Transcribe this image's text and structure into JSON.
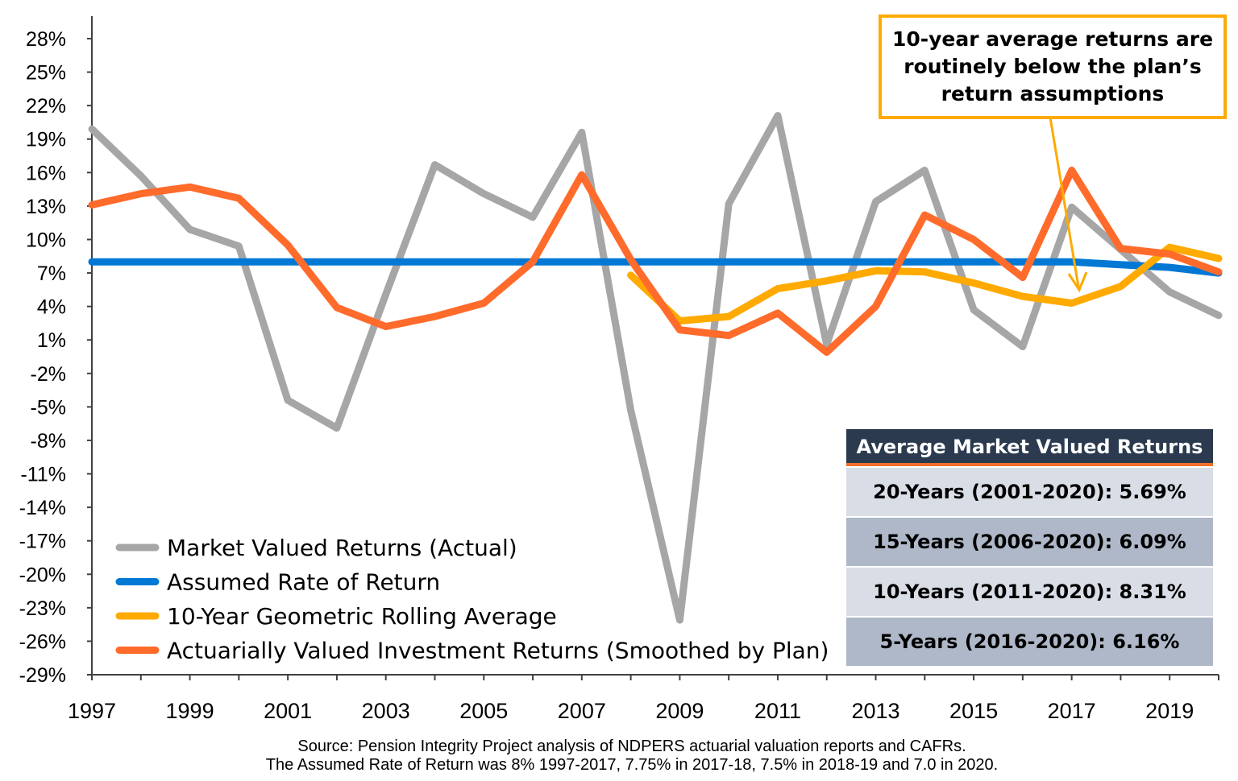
{
  "chart_data": {
    "type": "line",
    "x": [
      1997,
      1998,
      1999,
      2000,
      2001,
      2002,
      2003,
      2004,
      2005,
      2006,
      2007,
      2008,
      2009,
      2010,
      2011,
      2012,
      2013,
      2014,
      2015,
      2016,
      2017,
      2018,
      2019,
      2020
    ],
    "x_tick_labels": [
      "1997",
      "1999",
      "2001",
      "2003",
      "2005",
      "2007",
      "2009",
      "2011",
      "2013",
      "2015",
      "2017",
      "2019"
    ],
    "y_tick_labels": [
      "28%",
      "25%",
      "22%",
      "19%",
      "16%",
      "13%",
      "10%",
      "7%",
      "4%",
      "1%",
      "-2%",
      "-5%",
      "-8%",
      "-11%",
      "-14%",
      "-17%",
      "-20%",
      "-23%",
      "-26%",
      "-29%"
    ],
    "ylim": [
      -29,
      28
    ],
    "xlim": [
      1997,
      2020
    ],
    "grid": false,
    "legend_position": "bottom-left",
    "series": [
      {
        "name": "Market Valued Returns (Actual)",
        "color": "#A6A6A6",
        "values": [
          19.9,
          15.7,
          10.9,
          9.4,
          -4.4,
          -6.9,
          5.1,
          16.7,
          14.1,
          12.0,
          19.6,
          -5.3,
          -24.1,
          13.2,
          21.1,
          0.6,
          13.4,
          16.2,
          3.7,
          0.4,
          12.9,
          9.1,
          5.3,
          3.2
        ]
      },
      {
        "name": "Assumed Rate of Return",
        "color": "#0078D4",
        "values": [
          8,
          8,
          8,
          8,
          8,
          8,
          8,
          8,
          8,
          8,
          8,
          8,
          8,
          8,
          8,
          8,
          8,
          8,
          8,
          8,
          8,
          7.75,
          7.5,
          7.0
        ]
      },
      {
        "name": "10-Year Geometric Rolling Average",
        "color": "#FFAA00",
        "values": [
          null,
          null,
          null,
          null,
          null,
          null,
          null,
          null,
          null,
          null,
          null,
          6.8,
          2.7,
          3.1,
          5.6,
          6.3,
          7.2,
          7.1,
          6.1,
          4.9,
          4.3,
          5.8,
          9.3,
          8.3
        ]
      },
      {
        "name": "Actuarially Valued Investment Returns (Smoothed by Plan)",
        "color": "#FF6B2B",
        "values": [
          13.1,
          14.1,
          14.7,
          13.7,
          9.5,
          3.9,
          2.2,
          3.1,
          4.3,
          8.0,
          15.8,
          8.2,
          1.9,
          1.4,
          3.4,
          -0.1,
          4.0,
          12.2,
          10.0,
          6.6,
          16.2,
          9.2,
          8.7,
          7.1
        ]
      }
    ],
    "annotation": {
      "text_lines": [
        "10-year average returns are",
        "routinely below the plan’s",
        "return assumptions"
      ],
      "color": "#FFAA00"
    },
    "table": {
      "title": "Average Market Valued Returns",
      "rows": [
        "20-Years (2001-2020): 5.69%",
        "15-Years (2006-2020): 6.09%",
        "10-Years (2011-2020): 8.31%",
        "5-Years (2016-2020): 6.16%"
      ]
    },
    "source_lines": [
      "Source: Pension Integrity Project analysis of NDPERS actuarial valuation reports and CAFRs.",
      "The Assumed Rate of Return was 8% 1997-2017, 7.75% in 2017-18, 7.5% in 2018-19 and  7.0 in 2020."
    ]
  }
}
